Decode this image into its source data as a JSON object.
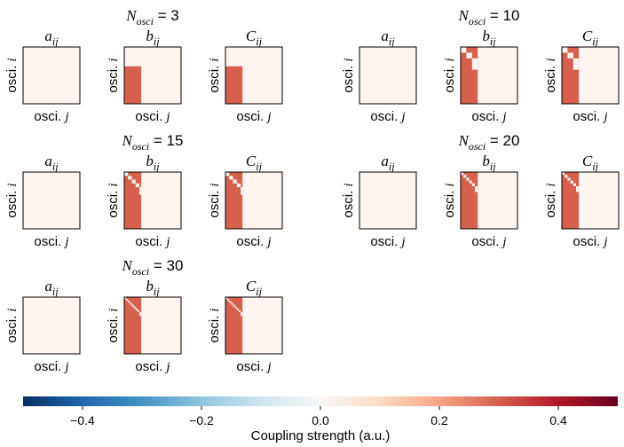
{
  "chart_data": {
    "type": "heatmap",
    "colorbar": {
      "label": "Coupling strength (a.u.)",
      "range": [
        -0.5,
        0.5
      ],
      "ticks": [
        -0.4,
        -0.2,
        0.0,
        0.2,
        0.4
      ],
      "tick_labels": [
        "−0.4",
        "−0.2",
        "0.0",
        "0.2",
        "0.4"
      ],
      "colormap": "RdBu_r"
    },
    "axis_labels": {
      "x": {
        "prefix": "osci. ",
        "var": "j"
      },
      "y": {
        "prefix": "osci. ",
        "var": "i"
      }
    },
    "matrix_titles": [
      {
        "base": "a",
        "sub": "ij"
      },
      {
        "base": "b",
        "sub": "ij"
      },
      {
        "base": "C",
        "sub": "ij"
      }
    ],
    "group_title": {
      "base": "N",
      "sub": "osci",
      "sep": " = "
    },
    "groups": [
      {
        "n_osci": 3,
        "n_osci_label": " 3",
        "a_value": 0.0,
        "b": {
          "filled_fraction": 0.3,
          "value": 0.3,
          "diagonal_offsets": []
        },
        "C": {
          "filled_fraction": 0.3,
          "value": 0.3,
          "diagonal_offsets": []
        }
      },
      {
        "n_osci": 10,
        "n_osci_label": "10",
        "a_value": 0.0,
        "b": {
          "filled_fraction": 0.3,
          "value": 0.3,
          "diagonal_offsets": [
            1
          ]
        },
        "C": {
          "filled_fraction": 0.3,
          "value": 0.3,
          "diagonal_offsets": [
            1
          ]
        }
      },
      {
        "n_osci": 15,
        "n_osci_label": "15",
        "a_value": 0.0,
        "b": {
          "filled_fraction": 0.3,
          "value": 0.3,
          "diagonal_offsets": [
            1
          ]
        },
        "C": {
          "filled_fraction": 0.3,
          "value": 0.3,
          "diagonal_offsets": [
            1
          ]
        }
      },
      {
        "n_osci": 20,
        "n_osci_label": "20",
        "a_value": 0.0,
        "b": {
          "filled_fraction": 0.3,
          "value": 0.3,
          "diagonal_offsets": [
            1
          ]
        },
        "C": {
          "filled_fraction": 0.3,
          "value": 0.3,
          "diagonal_offsets": [
            1
          ]
        }
      },
      {
        "n_osci": 30,
        "n_osci_label": "30",
        "a_value": 0.0,
        "b": {
          "filled_fraction": 0.3,
          "value": 0.3,
          "diagonal_offsets": [
            1
          ]
        },
        "C": {
          "filled_fraction": 0.3,
          "value": 0.3,
          "diagonal_offsets": [
            1
          ]
        }
      }
    ]
  }
}
